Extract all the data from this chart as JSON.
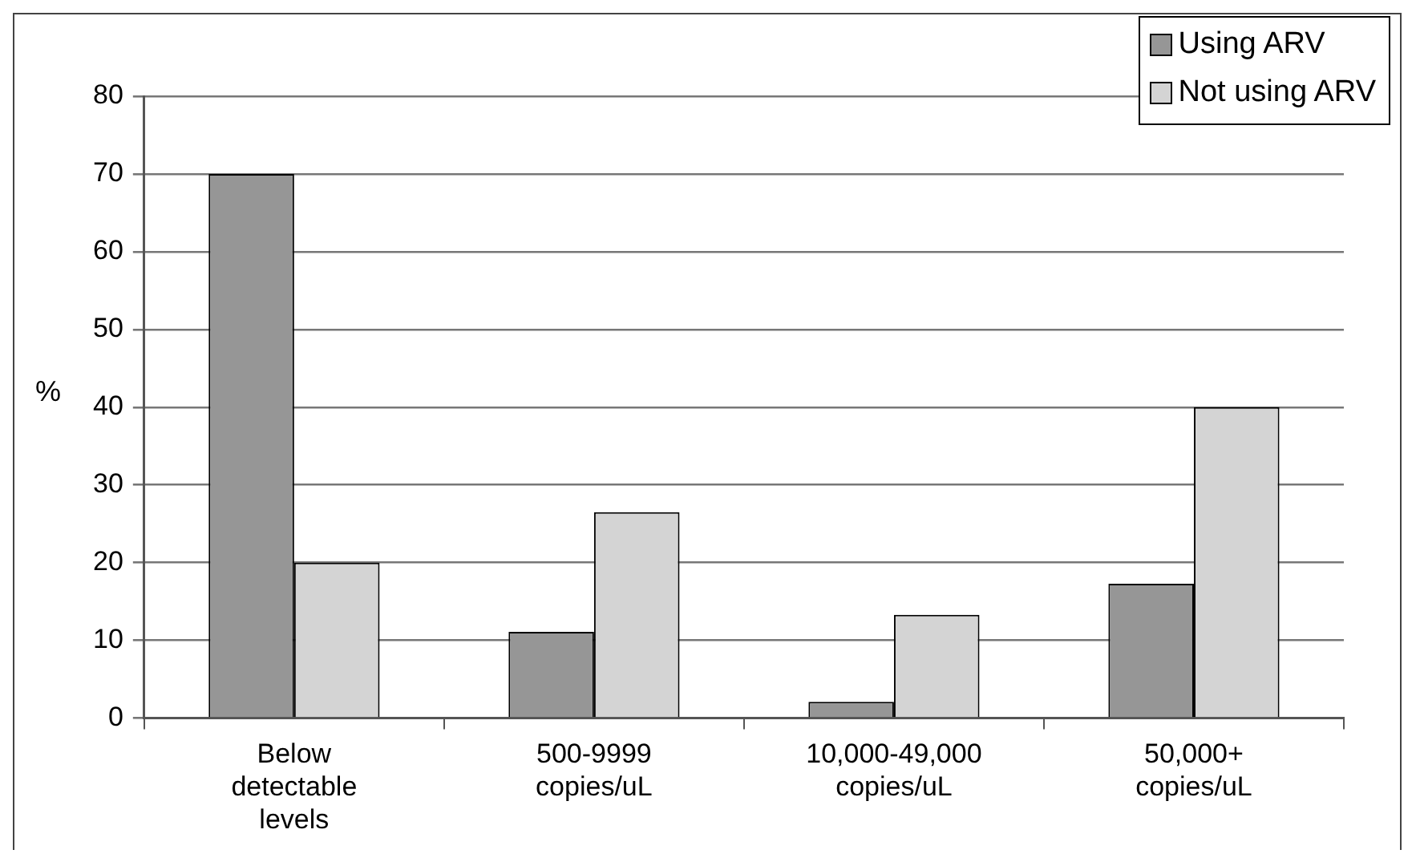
{
  "chart_data": {
    "type": "bar",
    "ylabel": "%",
    "categories": [
      "Below detectable levels",
      "500-9999 copies/uL",
      "10,000-49,000 copies/uL",
      "50,000+ copies/uL"
    ],
    "series": [
      {
        "name": "Using ARV",
        "color": "#969696",
        "values": [
          70,
          11.1,
          2.1,
          17.3
        ]
      },
      {
        "name": "Not using ARV",
        "color": "#d4d4d4",
        "values": [
          20,
          26.5,
          13.3,
          40
        ]
      }
    ],
    "ylim": [
      0,
      80
    ],
    "yticks": [
      0,
      10,
      20,
      30,
      40,
      50,
      60,
      70,
      80
    ],
    "grid": "y",
    "legend": "top right"
  }
}
